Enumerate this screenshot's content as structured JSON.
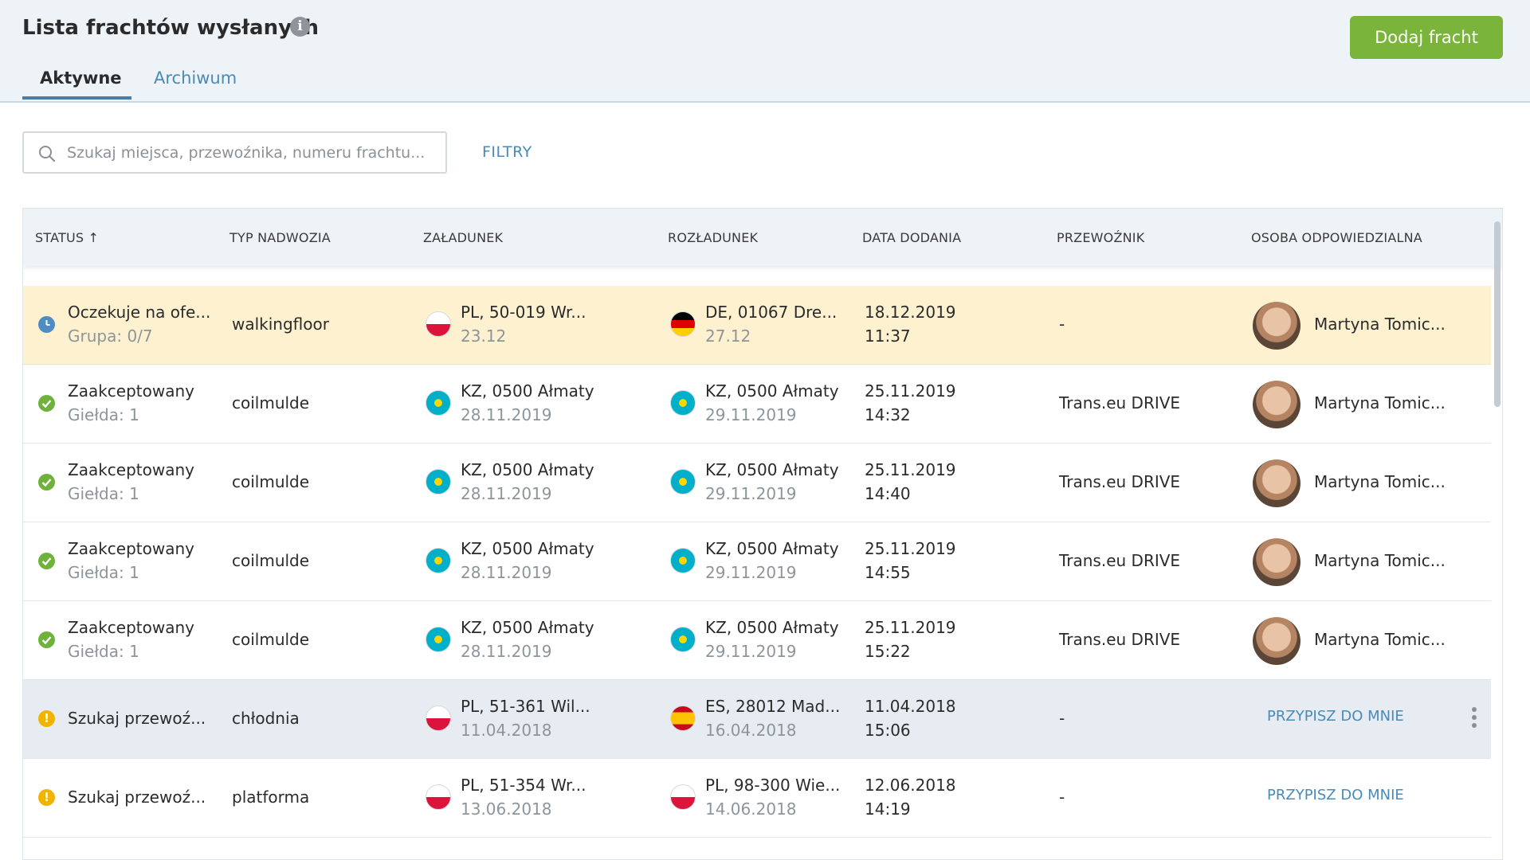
{
  "header": {
    "title": "Lista frachtów wysłanych",
    "info_icon": "info-icon",
    "add_button": "Dodaj fracht"
  },
  "tabs": [
    {
      "label": "Aktywne",
      "active": true
    },
    {
      "label": "Archiwum",
      "active": false
    }
  ],
  "search": {
    "placeholder": "Szukaj miejsca, przewoźnika, numeru frachtu...",
    "value": ""
  },
  "filters_label": "FILTRY",
  "columns": {
    "status": "STATUS ↑",
    "body_type": "TYP NADWOZIA",
    "loading": "ZAŁADUNEK",
    "unloading": "ROZŁADUNEK",
    "date_added": "DATA DODANIA",
    "carrier": "PRZEWOŹNIK",
    "responsible": "OSOBA ODPOWIEDZIALNA"
  },
  "rows": [
    {
      "status": "Oczekuje na ofe...",
      "status_sub": "Grupa: 0/7",
      "status_icon": "clock-icon",
      "body": "walkingfloor",
      "load_flag": "pl",
      "load": "PL, 50-019 Wr...",
      "load_date": "23.12",
      "unload_flag": "de",
      "unload": "DE, 01067 Dre...",
      "unload_date": "27.12",
      "date": "18.12.2019",
      "time": "11:37",
      "carrier": "-",
      "person": "Martyna Tomic..."
    },
    {
      "status": "Zaakceptowany",
      "status_sub": "Giełda: 1",
      "status_icon": "check-icon",
      "body": "coilmulde",
      "load_flag": "kz",
      "load": "KZ, 0500 Ałmaty",
      "load_date": "28.11.2019",
      "unload_flag": "kz",
      "unload": "KZ, 0500 Ałmaty",
      "unload_date": "29.11.2019",
      "date": "25.11.2019",
      "time": "14:32",
      "carrier": "Trans.eu DRIVE",
      "person": "Martyna Tomic..."
    },
    {
      "status": "Zaakceptowany",
      "status_sub": "Giełda: 1",
      "status_icon": "check-icon",
      "body": "coilmulde",
      "load_flag": "kz",
      "load": "KZ, 0500 Ałmaty",
      "load_date": "28.11.2019",
      "unload_flag": "kz",
      "unload": "KZ, 0500 Ałmaty",
      "unload_date": "29.11.2019",
      "date": "25.11.2019",
      "time": "14:40",
      "carrier": "Trans.eu DRIVE",
      "person": "Martyna Tomic..."
    },
    {
      "status": "Zaakceptowany",
      "status_sub": "Giełda: 1",
      "status_icon": "check-icon",
      "body": "coilmulde",
      "load_flag": "kz",
      "load": "KZ, 0500 Ałmaty",
      "load_date": "28.11.2019",
      "unload_flag": "kz",
      "unload": "KZ, 0500 Ałmaty",
      "unload_date": "29.11.2019",
      "date": "25.11.2019",
      "time": "14:55",
      "carrier": "Trans.eu DRIVE",
      "person": "Martyna Tomic..."
    },
    {
      "status": "Zaakceptowany",
      "status_sub": "Giełda: 1",
      "status_icon": "check-icon",
      "body": "coilmulde",
      "load_flag": "kz",
      "load": "KZ, 0500 Ałmaty",
      "load_date": "28.11.2019",
      "unload_flag": "kz",
      "unload": "KZ, 0500 Ałmaty",
      "unload_date": "29.11.2019",
      "date": "25.11.2019",
      "time": "15:22",
      "carrier": "Trans.eu DRIVE",
      "person": "Martyna Tomic..."
    },
    {
      "status": "Szukaj przewoź...",
      "status_icon": "warning-icon",
      "body": "chłodnia",
      "load_flag": "pl",
      "load": "PL, 51-361 Wil...",
      "load_date": "11.04.2018",
      "unload_flag": "es",
      "unload": "ES, 28012 Mad...",
      "unload_date": "16.04.2018",
      "date": "11.04.2018",
      "time": "15:06",
      "carrier": "-",
      "assign": "PRZYPISZ DO MNIE"
    },
    {
      "status": "Szukaj przewoź...",
      "status_icon": "warning-icon",
      "body": "platforma",
      "load_flag": "pl",
      "load": "PL, 51-354 Wr...",
      "load_date": "13.06.2018",
      "unload_flag": "pl",
      "unload": "PL, 98-300 Wie...",
      "unload_date": "14.06.2018",
      "date": "12.06.2018",
      "time": "14:19",
      "carrier": "-",
      "assign": "PRZYPISZ DO MNIE"
    }
  ],
  "colors": {
    "accent_green": "#7ab43a",
    "link_blue": "#4a8ab8",
    "highlight_row": "#fdf1cf",
    "hover_row": "#e6ecf1"
  }
}
